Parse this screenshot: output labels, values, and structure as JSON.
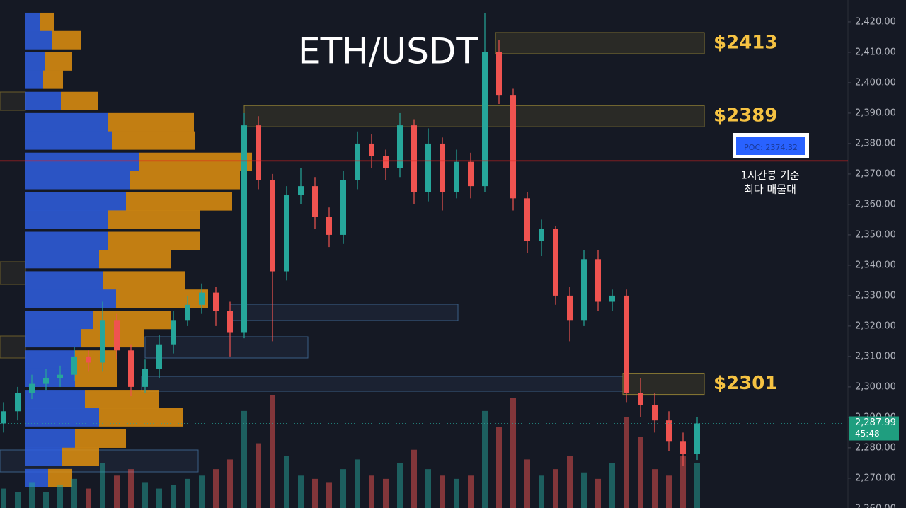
{
  "chart_data": {
    "type": "candlestick",
    "title": "ETH/USDT",
    "ylim": [
      2260.2,
      2427.2
    ],
    "yticks": [
      {
        "value": 2260,
        "label": "2,260.00"
      },
      {
        "value": 2270,
        "label": "2,270.00"
      },
      {
        "value": 2280,
        "label": "2,280.00"
      },
      {
        "value": 2290,
        "label": "2,290.00"
      },
      {
        "value": 2300,
        "label": "2,300.00"
      },
      {
        "value": 2310,
        "label": "2,310.00"
      },
      {
        "value": 2320,
        "label": "2,320.00"
      },
      {
        "value": 2330,
        "label": "2,330.00"
      },
      {
        "value": 2340,
        "label": "2,340.00"
      },
      {
        "value": 2350,
        "label": "2,350.00"
      },
      {
        "value": 2360,
        "label": "2,360.00"
      },
      {
        "value": 2370,
        "label": "2,370.00"
      },
      {
        "value": 2380,
        "label": "2,380.00"
      },
      {
        "value": 2390,
        "label": "2,390.00"
      },
      {
        "value": 2400,
        "label": "2,400.00"
      },
      {
        "value": 2410,
        "label": "2,410.00"
      },
      {
        "value": 2420,
        "label": "2,420.00"
      }
    ],
    "up_color": "#26a69a",
    "down_color": "#ef5350",
    "open": [
      2288,
      2292,
      2298,
      2301,
      2303,
      2304,
      2310,
      2308,
      2322,
      2312,
      2300,
      2306,
      2314,
      2322,
      2327,
      2331,
      2325,
      2318,
      2386,
      2368,
      2338,
      2363,
      2366,
      2356,
      2350,
      2368,
      2380,
      2376,
      2372,
      2386,
      2364,
      2380,
      2364,
      2374,
      2366,
      2410,
      2396,
      2362,
      2348,
      2352,
      2330,
      2322,
      2342,
      2328,
      2330,
      2298,
      2294,
      2289,
      2282,
      2278
    ],
    "high": [
      2295,
      2300,
      2304,
      2306,
      2307,
      2313,
      2312,
      2328,
      2324,
      2314,
      2309,
      2317,
      2325,
      2330,
      2334,
      2333,
      2328,
      2390,
      2389,
      2370,
      2366,
      2372,
      2369,
      2359,
      2371,
      2384,
      2383,
      2378,
      2390,
      2388,
      2385,
      2382,
      2378,
      2377,
      2423,
      2414,
      2398,
      2364,
      2355,
      2353,
      2333,
      2345,
      2345,
      2332,
      2332,
      2303,
      2298,
      2292,
      2285,
      2290
    ],
    "low": [
      2285,
      2289,
      2296,
      2299,
      2300,
      2302,
      2305,
      2305,
      2309,
      2297,
      2298,
      2303,
      2311,
      2320,
      2324,
      2320,
      2310,
      2316,
      2365,
      2315,
      2335,
      2360,
      2352,
      2346,
      2347,
      2365,
      2372,
      2368,
      2369,
      2360,
      2361,
      2358,
      2362,
      2362,
      2364,
      2393,
      2358,
      2344,
      2343,
      2327,
      2315,
      2320,
      2325,
      2325,
      2295,
      2290,
      2285,
      2279,
      2274,
      2276
    ],
    "close": [
      2292,
      2298,
      2301,
      2303,
      2304,
      2310,
      2308,
      2322,
      2312,
      2300,
      2306,
      2314,
      2322,
      2327,
      2331,
      2325,
      2318,
      2386,
      2368,
      2338,
      2363,
      2366,
      2356,
      2350,
      2368,
      2380,
      2376,
      2372,
      2386,
      2364,
      2380,
      2364,
      2374,
      2366,
      2410,
      2396,
      2362,
      2348,
      2352,
      2330,
      2322,
      2342,
      2328,
      2330,
      2298,
      2294,
      2289,
      2282,
      2278,
      2288
    ],
    "volume": [
      6,
      5,
      8,
      5,
      7,
      9,
      6,
      14,
      10,
      12,
      8,
      6,
      7,
      9,
      10,
      12,
      15,
      30,
      20,
      35,
      16,
      10,
      9,
      8,
      12,
      15,
      10,
      9,
      14,
      18,
      12,
      10,
      9,
      10,
      30,
      25,
      34,
      15,
      10,
      12,
      16,
      11,
      9,
      14,
      28,
      22,
      12,
      10,
      16,
      14
    ],
    "volume_profile": {
      "levels": [
        2420,
        2414,
        2407,
        2401,
        2394,
        2387,
        2381,
        2374,
        2368,
        2361,
        2355,
        2348,
        2342,
        2335,
        2329,
        2322,
        2316,
        2309,
        2303,
        2296,
        2290,
        2283,
        2277,
        2270
      ],
      "series": [
        {
          "name": "buy",
          "color": "#2f5fe0",
          "values": [
            20,
            38,
            28,
            25,
            50,
            116,
            122,
            160,
            148,
            142,
            116,
            116,
            104,
            110,
            128,
            96,
            78,
            70,
            70,
            84,
            104,
            70,
            52,
            32
          ]
        },
        {
          "name": "sell",
          "color": "#e0900f",
          "values": [
            20,
            40,
            38,
            28,
            52,
            122,
            118,
            160,
            155,
            150,
            130,
            130,
            102,
            116,
            130,
            110,
            90,
            60,
            60,
            104,
            118,
            72,
            52,
            34
          ]
        }
      ]
    },
    "levels": [
      {
        "value": 2413,
        "label": "$2413"
      },
      {
        "value": 2389,
        "label": "$2389"
      },
      {
        "value": 2301,
        "label": "$2301"
      }
    ],
    "poc": {
      "value": 2374.32,
      "label": "POC: 2374.32"
    },
    "poc_note": [
      "1시간봉 기준",
      "최다 매물대"
    ],
    "last_price": {
      "value": 2287.99,
      "label": "2,287.99"
    },
    "countdown": "45:48"
  }
}
